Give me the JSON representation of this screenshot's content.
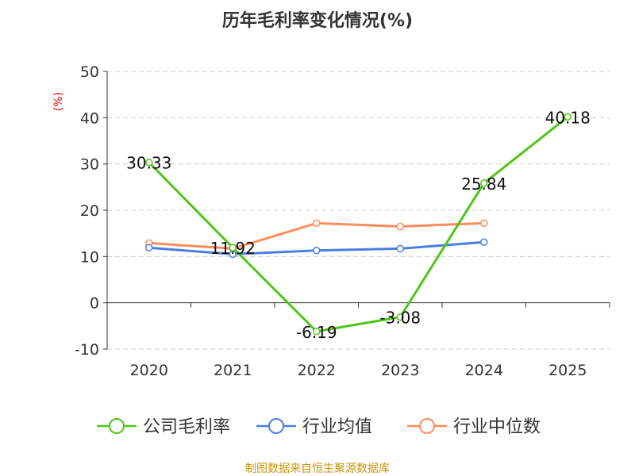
{
  "chart_data": {
    "type": "line",
    "title": "历年毛利率变化情况(%)",
    "ylabel": "(%)",
    "categories": [
      "2020",
      "2021",
      "2022",
      "2023",
      "2024",
      "2025"
    ],
    "ylim": [
      -10,
      50
    ],
    "yticks": [
      -10,
      0,
      10,
      20,
      30,
      40,
      50
    ],
    "grid": true,
    "legend_position": "bottom",
    "series": [
      {
        "name": "公司毛利率",
        "color": "#52c41a",
        "values": [
          30.33,
          11.92,
          -6.19,
          -3.08,
          25.84,
          40.18
        ],
        "labels": [
          "30.33",
          "11.92",
          "-6.19",
          "-3.08",
          "25.84",
          "40.18"
        ]
      },
      {
        "name": "行业均值",
        "color": "#4a7fe0",
        "values": [
          11.9,
          10.5,
          11.3,
          11.7,
          13.1,
          null
        ]
      },
      {
        "name": "行业中位数",
        "color": "#ff8c5a",
        "values": [
          12.9,
          11.7,
          17.2,
          16.5,
          17.2,
          null
        ]
      }
    ]
  },
  "footer": "制图数据来自恒生聚源数据库"
}
